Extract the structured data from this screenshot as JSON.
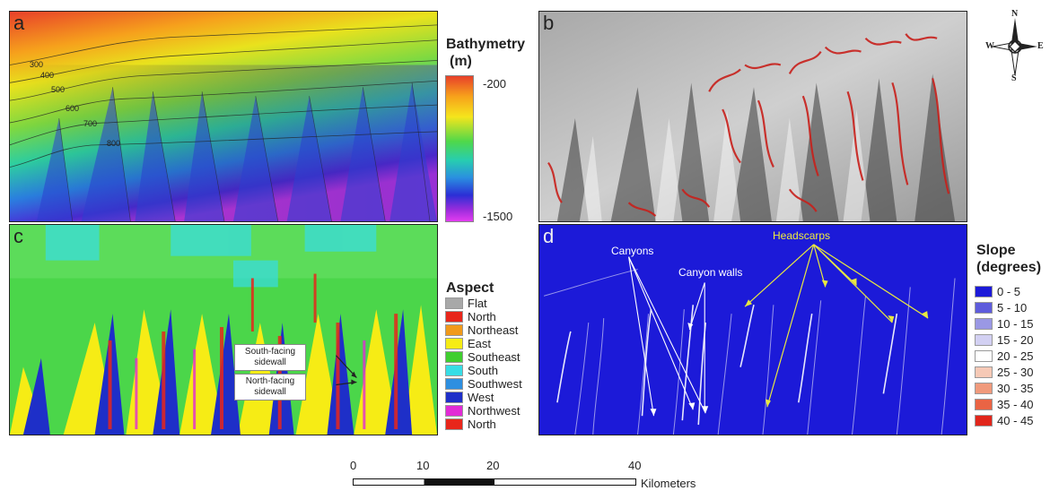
{
  "panels": {
    "a": {
      "label": "a"
    },
    "b": {
      "label": "b"
    },
    "c": {
      "label": "c"
    },
    "d": {
      "label": "d"
    }
  },
  "contour_labels": [
    "300",
    "400",
    "500",
    "600",
    "700",
    "800"
  ],
  "bathymetry_legend": {
    "title_line1": "Bathymetry",
    "title_line2": "(m)",
    "max_label": "-200",
    "min_label": "-1500",
    "colors": [
      "#e8402a",
      "#f7a21b",
      "#f5e51c",
      "#4fd84a",
      "#27cdb0",
      "#2a8fe0",
      "#2b2fd6",
      "#9a2cdc",
      "#e33cf0"
    ]
  },
  "aspect_legend": {
    "title": "Aspect",
    "items": [
      {
        "label": "Flat",
        "color": "#a8a8a8"
      },
      {
        "label": "North",
        "color": "#e8261b"
      },
      {
        "label": "Northeast",
        "color": "#f19a1b"
      },
      {
        "label": "East",
        "color": "#f6ec15"
      },
      {
        "label": "Southeast",
        "color": "#3fce2f"
      },
      {
        "label": "South",
        "color": "#37dde6"
      },
      {
        "label": "Southwest",
        "color": "#2e8fe0"
      },
      {
        "label": "West",
        "color": "#1e2fc8"
      },
      {
        "label": "Northwest",
        "color": "#e22bd6"
      },
      {
        "label": "North",
        "color": "#e8261b"
      }
    ]
  },
  "slope_legend": {
    "title_line1": "Slope",
    "title_line2": "(degrees)",
    "items": [
      {
        "label": "0 - 5",
        "color": "#1c1ad8"
      },
      {
        "label": "5 - 10",
        "color": "#5e5cdc"
      },
      {
        "label": "10 - 15",
        "color": "#9a98e4"
      },
      {
        "label": "15 - 20",
        "color": "#d2d0f2"
      },
      {
        "label": "20 - 25",
        "color": "#ffffff"
      },
      {
        "label": "25 - 30",
        "color": "#f6c9b6"
      },
      {
        "label": "30 - 35",
        "color": "#f09a7c"
      },
      {
        "label": "35 - 40",
        "color": "#ea6444"
      },
      {
        "label": "40 - 45",
        "color": "#e1261b"
      }
    ]
  },
  "callouts": {
    "south_facing": "South-facing sidewall",
    "north_facing": "North-facing sidewall"
  },
  "annotations": {
    "canyons": "Canyons",
    "canyon_walls": "Canyon walls",
    "headscarps": "Headscarps"
  },
  "compass": {
    "n": "N",
    "s": "S",
    "e": "E",
    "w": "W"
  },
  "scale_bar": {
    "ticks": [
      "0",
      "10",
      "20",
      "40"
    ],
    "unit": "Kilometers"
  }
}
